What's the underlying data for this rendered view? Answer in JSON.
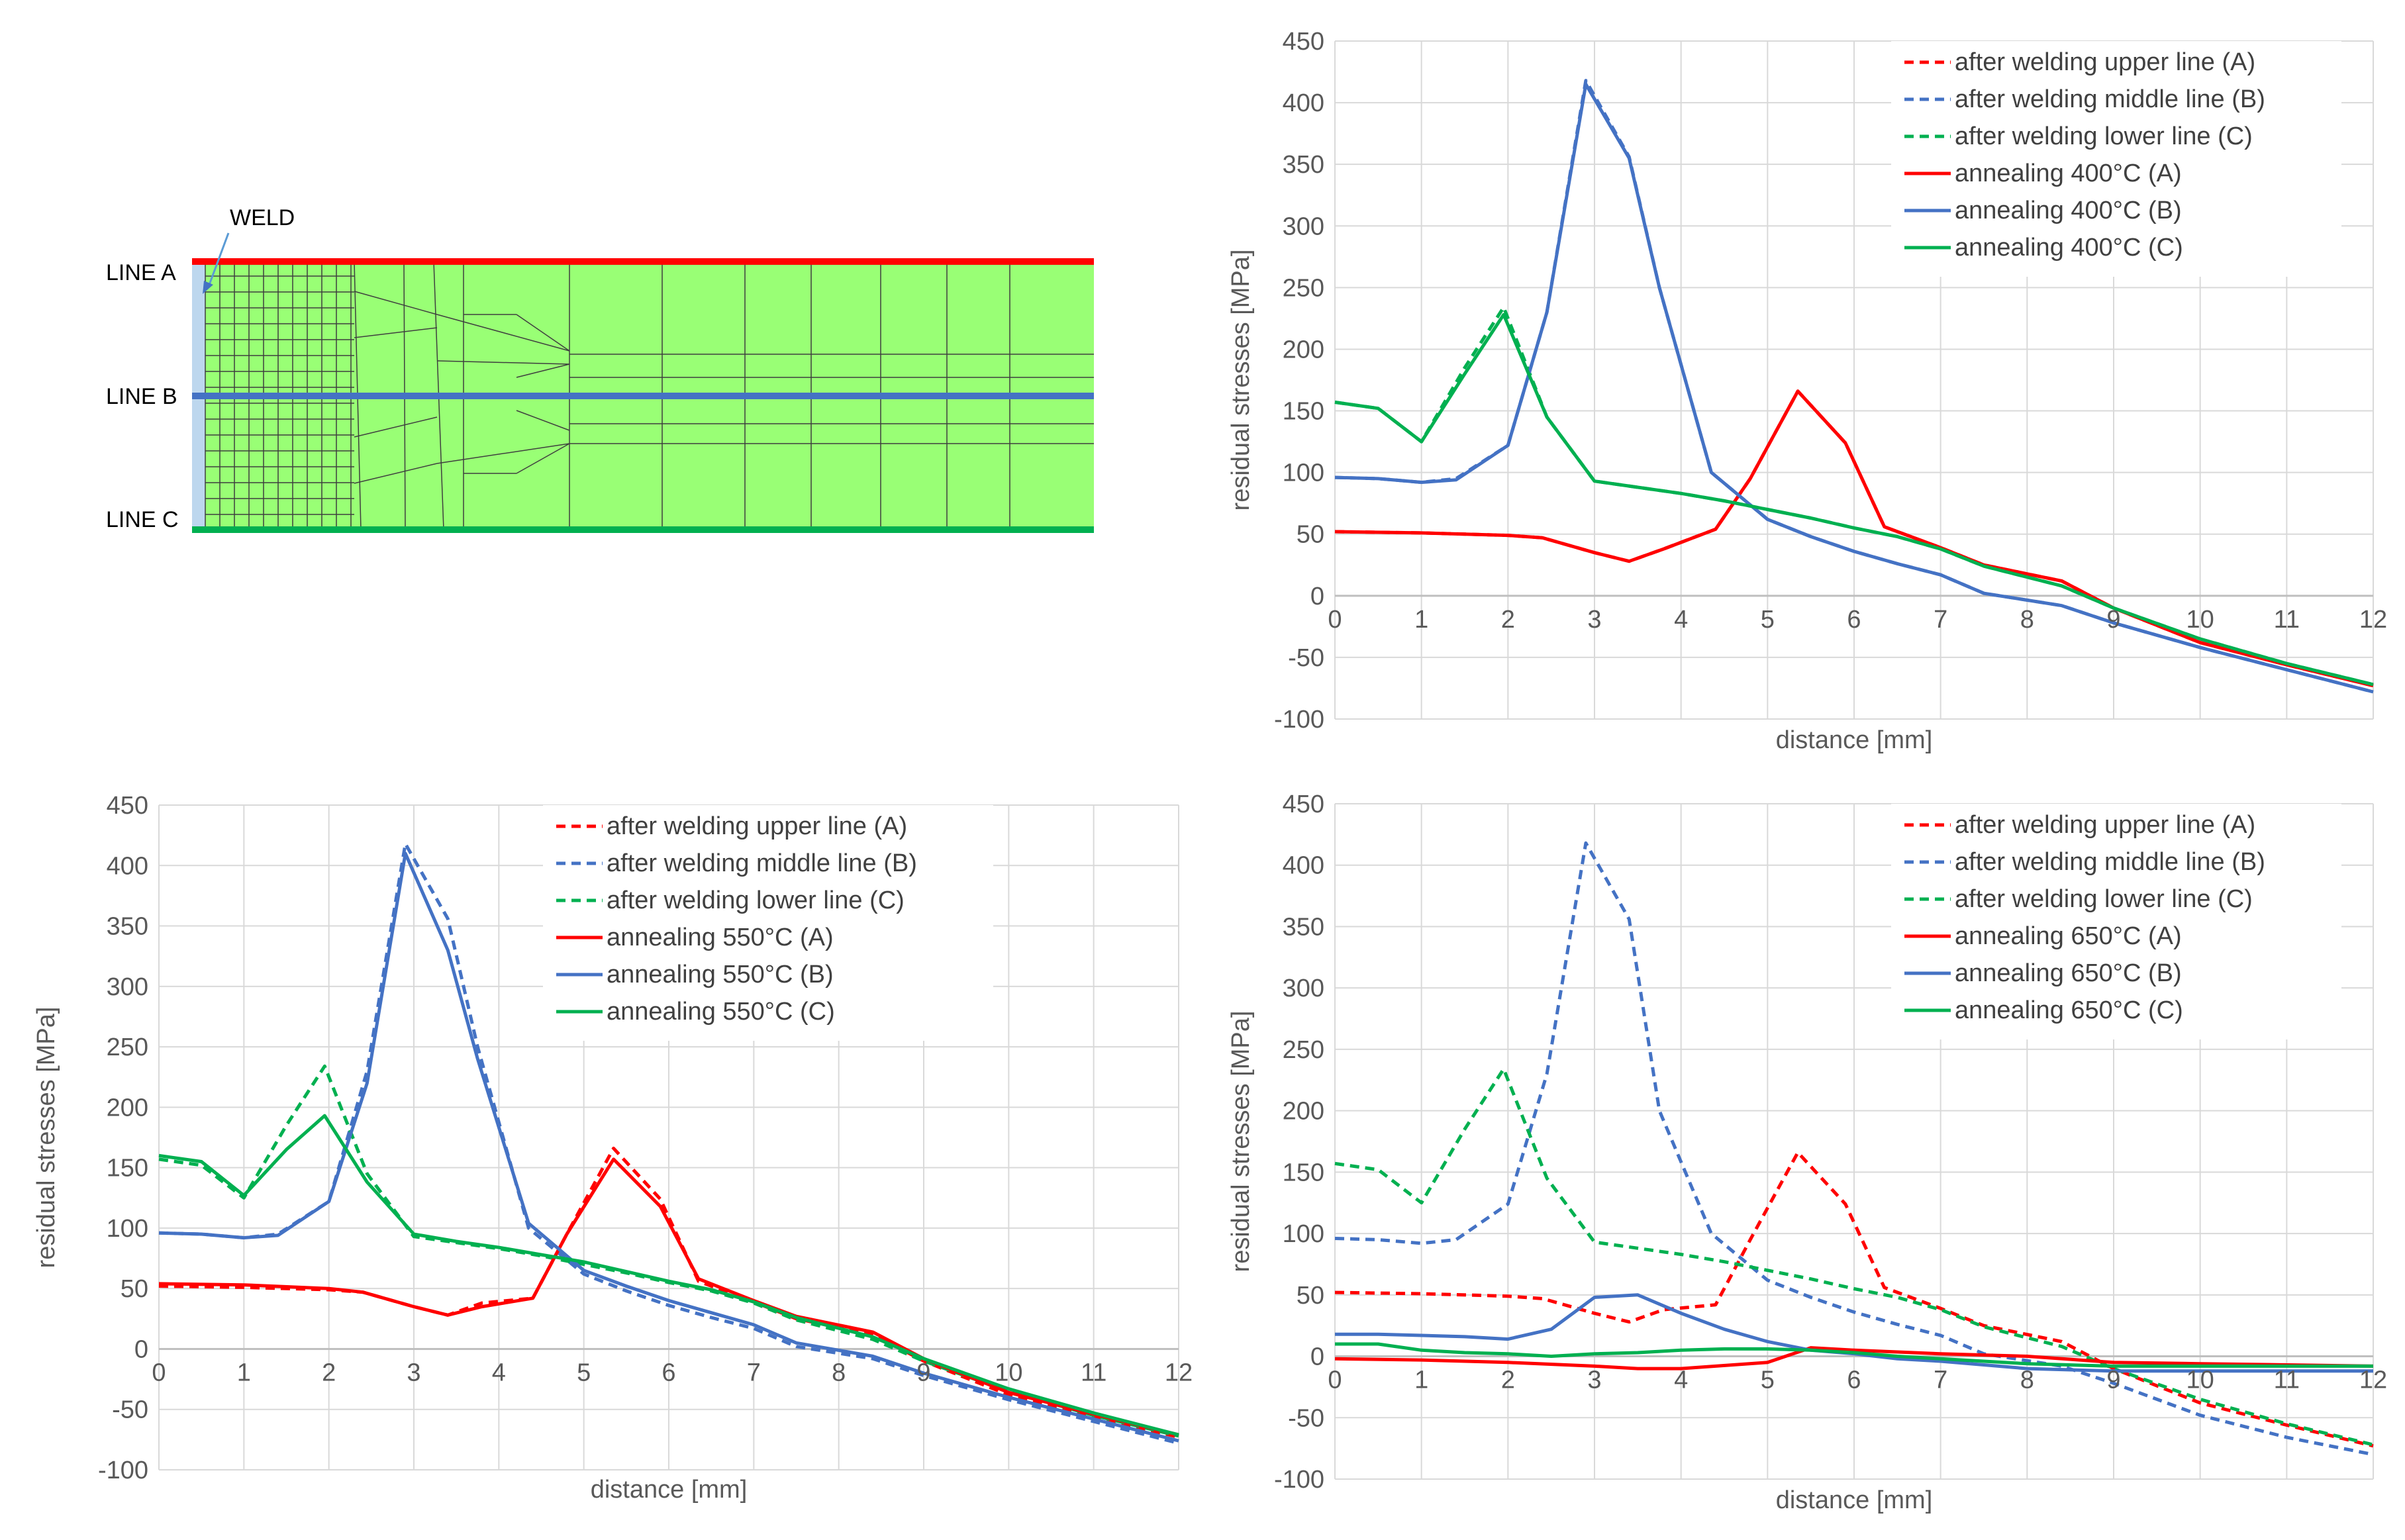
{
  "diagram": {
    "weld_label": "WELD",
    "line_labels": [
      "LINE A",
      "LINE B",
      "LINE C"
    ],
    "colors": {
      "plate": "#99ff75",
      "line_a": "#ff0000",
      "line_b": "#4472c4",
      "line_c": "#00b050",
      "weld_zone": "#bdd7ee",
      "mesh": "#3f3f3f"
    }
  },
  "chart_data": [
    {
      "id": "chart-400",
      "type": "line",
      "title": "",
      "xlabel": "distance [mm]",
      "ylabel": "residual stresses [MPa]",
      "xlim": [
        0,
        12
      ],
      "ylim": [
        -100,
        450
      ],
      "xticks": [
        0,
        1,
        2,
        3,
        4,
        5,
        6,
        7,
        8,
        9,
        10,
        11,
        12
      ],
      "yticks": [
        -100,
        -50,
        0,
        50,
        100,
        150,
        200,
        250,
        300,
        350,
        400,
        450
      ],
      "legend_position": "top-right",
      "series": [
        {
          "name": "after welding upper line (A)",
          "color": "#ff0000",
          "dash": true,
          "x": [
            0,
            1,
            2,
            2.4,
            3,
            3.4,
            3.8,
            4.4,
            4.8,
            5.35,
            5.9,
            6.35,
            7,
            7.5,
            8.4,
            9,
            10,
            11,
            12
          ],
          "y": [
            52,
            51,
            49,
            47,
            35,
            28,
            38,
            54,
            95,
            166,
            124,
            56,
            39,
            25,
            12,
            -10,
            -38,
            -56,
            -73
          ]
        },
        {
          "name": "after welding middle line (B)",
          "color": "#4472c4",
          "dash": true,
          "x": [
            0,
            0.5,
            1,
            1.4,
            2,
            2.45,
            2.9,
            3.4,
            3.75,
            4.35,
            5,
            5.5,
            6,
            6.5,
            7,
            7.5,
            8.4,
            9,
            10,
            11,
            12
          ],
          "y": [
            96,
            95,
            92,
            95,
            122,
            230,
            418,
            356,
            250,
            100,
            62,
            48,
            36,
            26,
            17,
            2,
            -8,
            -22,
            -42,
            -60,
            -78
          ]
        },
        {
          "name": "after welding lower line (C)",
          "color": "#00b050",
          "dash": true,
          "x": [
            0,
            0.5,
            1,
            1.5,
            1.95,
            2.45,
            3,
            3.5,
            4,
            4.5,
            5,
            5.5,
            6,
            6.5,
            7,
            7.5,
            8.4,
            9,
            10,
            11,
            12
          ],
          "y": [
            157,
            152,
            125,
            185,
            234,
            145,
            93,
            88,
            83,
            77,
            70,
            63,
            55,
            48,
            38,
            24,
            8,
            -10,
            -35,
            -55,
            -72
          ]
        },
        {
          "name": "annealing 400°C (A)",
          "color": "#ff0000",
          "dash": false,
          "x": [
            0,
            1,
            2,
            2.4,
            3,
            3.4,
            3.8,
            4.4,
            4.8,
            5.35,
            5.9,
            6.35,
            7,
            7.5,
            8.4,
            9,
            10,
            11,
            12
          ],
          "y": [
            52,
            51,
            49,
            47,
            35,
            28,
            38,
            54,
            95,
            166,
            124,
            56,
            39,
            25,
            12,
            -10,
            -38,
            -56,
            -73
          ]
        },
        {
          "name": "annealing 400°C (B)",
          "color": "#4472c4",
          "dash": false,
          "x": [
            0,
            0.5,
            1,
            1.4,
            2,
            2.45,
            2.9,
            3.4,
            3.75,
            4.35,
            5,
            5.5,
            6,
            6.5,
            7,
            7.5,
            8.4,
            9,
            10,
            11,
            12
          ],
          "y": [
            96,
            95,
            92,
            94,
            122,
            230,
            415,
            355,
            250,
            100,
            62,
            48,
            36,
            26,
            17,
            2,
            -8,
            -22,
            -42,
            -60,
            -78
          ]
        },
        {
          "name": "annealing 400°C (C)",
          "color": "#00b050",
          "dash": false,
          "x": [
            0,
            0.5,
            1,
            1.5,
            1.95,
            2.45,
            3,
            3.5,
            4,
            4.5,
            5,
            5.5,
            6,
            6.5,
            7,
            7.5,
            8.4,
            9,
            10,
            11,
            12
          ],
          "y": [
            157,
            152,
            125,
            180,
            228,
            145,
            93,
            88,
            83,
            77,
            70,
            63,
            55,
            48,
            38,
            24,
            8,
            -10,
            -35,
            -55,
            -72
          ]
        }
      ]
    },
    {
      "id": "chart-550",
      "type": "line",
      "title": "",
      "xlabel": "distance [mm]",
      "ylabel": "residual stresses [MPa]",
      "xlim": [
        0,
        12
      ],
      "ylim": [
        -100,
        450
      ],
      "xticks": [
        0,
        1,
        2,
        3,
        4,
        5,
        6,
        7,
        8,
        9,
        10,
        11,
        12
      ],
      "yticks": [
        -100,
        -50,
        0,
        50,
        100,
        150,
        200,
        250,
        300,
        350,
        400,
        450
      ],
      "legend_position": "top-right",
      "series": [
        {
          "name": "after welding upper line (A)",
          "color": "#ff0000",
          "dash": true,
          "x": [
            0,
            1,
            2,
            2.4,
            3,
            3.4,
            3.8,
            4.4,
            4.8,
            5.35,
            5.9,
            6.35,
            7,
            7.5,
            8.4,
            9,
            10,
            11,
            12
          ],
          "y": [
            52,
            51,
            49,
            47,
            35,
            28,
            38,
            42,
            95,
            166,
            124,
            56,
            39,
            25,
            12,
            -10,
            -38,
            -56,
            -73
          ]
        },
        {
          "name": "after welding middle line (B)",
          "color": "#4472c4",
          "dash": true,
          "x": [
            0,
            0.5,
            1,
            1.4,
            2,
            2.45,
            2.9,
            3.4,
            3.75,
            4.35,
            5,
            5.5,
            6,
            6.5,
            7,
            7.5,
            8.4,
            9,
            10,
            11,
            12
          ],
          "y": [
            96,
            95,
            92,
            95,
            122,
            230,
            418,
            356,
            250,
            100,
            62,
            48,
            36,
            26,
            17,
            2,
            -8,
            -22,
            -42,
            -60,
            -78
          ]
        },
        {
          "name": "after welding lower line (C)",
          "color": "#00b050",
          "dash": true,
          "x": [
            0,
            0.5,
            1,
            1.5,
            1.95,
            2.45,
            3,
            3.5,
            4,
            4.5,
            5,
            5.5,
            6,
            6.5,
            7,
            7.5,
            8.4,
            9,
            10,
            11,
            12
          ],
          "y": [
            157,
            152,
            125,
            185,
            234,
            145,
            93,
            88,
            83,
            77,
            70,
            63,
            55,
            48,
            38,
            24,
            8,
            -10,
            -35,
            -55,
            -72
          ]
        },
        {
          "name": "annealing 550°C (A)",
          "color": "#ff0000",
          "dash": false,
          "x": [
            0,
            1,
            2,
            2.4,
            3,
            3.4,
            3.8,
            4.4,
            4.8,
            5.35,
            5.9,
            6.35,
            7,
            7.5,
            8.4,
            9,
            10,
            11,
            12
          ],
          "y": [
            54,
            53,
            50,
            47,
            35,
            28,
            35,
            42,
            95,
            157,
            118,
            58,
            40,
            27,
            14,
            -8,
            -36,
            -54,
            -71
          ]
        },
        {
          "name": "annealing 550°C (B)",
          "color": "#4472c4",
          "dash": false,
          "x": [
            0,
            0.5,
            1,
            1.4,
            2,
            2.45,
            2.9,
            3.4,
            3.75,
            4.35,
            5,
            5.5,
            6,
            6.5,
            7,
            7.5,
            8.4,
            9,
            10,
            11,
            12
          ],
          "y": [
            96,
            95,
            92,
            94,
            122,
            220,
            410,
            330,
            240,
            104,
            65,
            52,
            40,
            30,
            20,
            5,
            -6,
            -20,
            -40,
            -58,
            -76
          ]
        },
        {
          "name": "annealing 550°C (C)",
          "color": "#00b050",
          "dash": false,
          "x": [
            0,
            0.5,
            1,
            1.5,
            1.95,
            2.45,
            3,
            3.5,
            4,
            4.5,
            5,
            5.5,
            6,
            6.5,
            7,
            7.5,
            8.4,
            9,
            10,
            11,
            12
          ],
          "y": [
            160,
            155,
            127,
            165,
            193,
            138,
            95,
            89,
            84,
            78,
            72,
            64,
            56,
            49,
            39,
            26,
            10,
            -8,
            -33,
            -53,
            -71
          ]
        }
      ]
    },
    {
      "id": "chart-650",
      "type": "line",
      "title": "",
      "xlabel": "distance [mm]",
      "ylabel": "residual stresses [MPa]",
      "xlim": [
        0,
        12
      ],
      "ylim": [
        -100,
        450
      ],
      "xticks": [
        0,
        1,
        2,
        3,
        4,
        5,
        6,
        7,
        8,
        9,
        10,
        11,
        12
      ],
      "yticks": [
        -100,
        -50,
        0,
        50,
        100,
        150,
        200,
        250,
        300,
        350,
        400,
        450
      ],
      "legend_position": "top-right",
      "series": [
        {
          "name": "after welding upper line (A)",
          "color": "#ff0000",
          "dash": true,
          "x": [
            0,
            1,
            2,
            2.4,
            3,
            3.4,
            3.8,
            4.4,
            4.8,
            5.35,
            5.9,
            6.35,
            7,
            7.5,
            8.4,
            9,
            10,
            11,
            12
          ],
          "y": [
            52,
            51,
            49,
            47,
            35,
            28,
            38,
            42,
            95,
            166,
            124,
            56,
            39,
            25,
            12,
            -10,
            -38,
            -56,
            -73
          ]
        },
        {
          "name": "after welding middle line (B)",
          "color": "#4472c4",
          "dash": true,
          "x": [
            0,
            0.5,
            1,
            1.4,
            2,
            2.45,
            2.9,
            3.4,
            3.75,
            4.35,
            5,
            5.5,
            6,
            6.5,
            7,
            7.5,
            8.4,
            9,
            10,
            11,
            12
          ],
          "y": [
            96,
            95,
            92,
            95,
            124,
            230,
            418,
            356,
            200,
            100,
            62,
            48,
            36,
            26,
            17,
            2,
            -8,
            -22,
            -48,
            -66,
            -80
          ]
        },
        {
          "name": "after welding lower line (C)",
          "color": "#00b050",
          "dash": true,
          "x": [
            0,
            0.5,
            1,
            1.5,
            1.95,
            2.45,
            3,
            3.5,
            4,
            4.5,
            5,
            5.5,
            6,
            6.5,
            7,
            7.5,
            8.4,
            9,
            10,
            11,
            12
          ],
          "y": [
            157,
            152,
            125,
            185,
            234,
            145,
            93,
            88,
            83,
            77,
            70,
            63,
            55,
            48,
            38,
            24,
            8,
            -10,
            -35,
            -55,
            -72
          ]
        },
        {
          "name": "annealing 650°C (A)",
          "color": "#ff0000",
          "dash": false,
          "x": [
            0,
            1,
            2,
            3,
            3.5,
            4,
            5,
            5.5,
            6,
            7,
            8,
            9,
            10,
            11,
            12
          ],
          "y": [
            -2,
            -3,
            -5,
            -8,
            -10,
            -10,
            -5,
            7,
            5,
            2,
            0,
            -5,
            -6,
            -7,
            -8
          ]
        },
        {
          "name": "annealing 650°C (B)",
          "color": "#4472c4",
          "dash": false,
          "x": [
            0,
            0.5,
            1,
            1.5,
            2,
            2.5,
            3,
            3.5,
            4,
            4.5,
            5,
            5.5,
            6,
            6.5,
            7,
            7.5,
            8,
            9,
            10,
            11,
            12
          ],
          "y": [
            18,
            18,
            17,
            16,
            14,
            22,
            48,
            50,
            35,
            22,
            12,
            5,
            2,
            -2,
            -4,
            -7,
            -10,
            -12,
            -12,
            -12,
            -12
          ]
        },
        {
          "name": "annealing 650°C (C)",
          "color": "#00b050",
          "dash": false,
          "x": [
            0,
            0.5,
            1,
            1.5,
            2,
            2.5,
            3,
            3.5,
            4,
            4.5,
            5,
            5.5,
            6,
            6.5,
            7,
            7.5,
            8,
            9,
            10,
            11,
            12
          ],
          "y": [
            10,
            10,
            5,
            3,
            2,
            0,
            2,
            3,
            5,
            6,
            6,
            5,
            3,
            0,
            -2,
            -4,
            -6,
            -8,
            -8,
            -8,
            -8
          ]
        }
      ]
    }
  ]
}
